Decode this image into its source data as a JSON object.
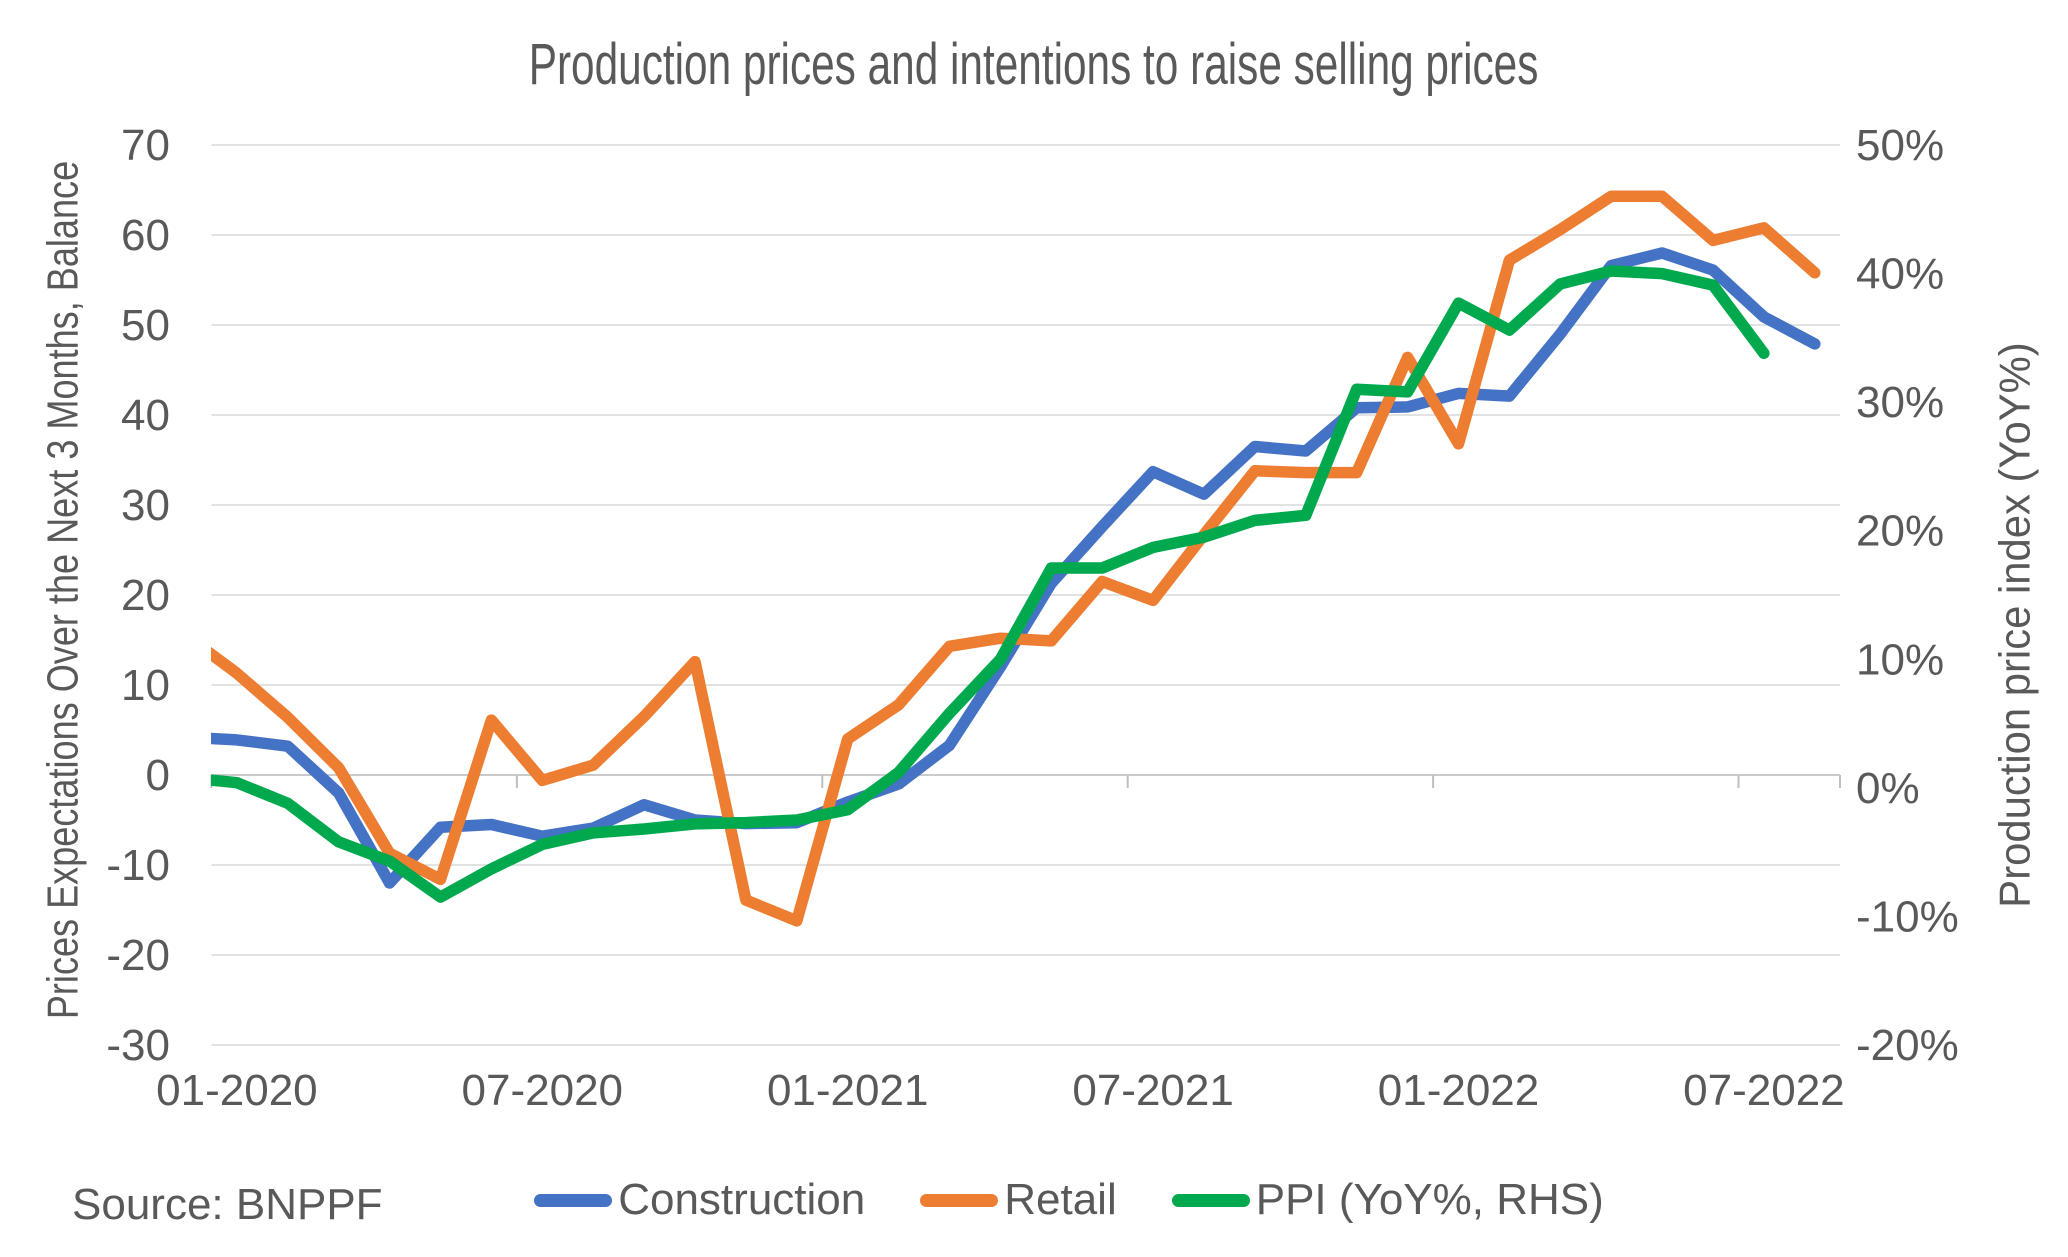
{
  "chart_data": {
    "type": "line",
    "title": "Production prices and intentions to raise selling prices",
    "source": "Source: BNPPF",
    "grid": true,
    "legend_position": "bottom",
    "x": [
      "12-2019",
      "01-2020",
      "02-2020",
      "03-2020",
      "04-2020",
      "05-2020",
      "06-2020",
      "07-2020",
      "08-2020",
      "09-2020",
      "10-2020",
      "11-2020",
      "12-2020",
      "01-2021",
      "02-2021",
      "03-2021",
      "04-2021",
      "05-2021",
      "06-2021",
      "07-2021",
      "08-2021",
      "09-2021",
      "10-2021",
      "11-2021",
      "12-2021",
      "01-2022",
      "02-2022",
      "03-2022",
      "04-2022",
      "05-2022",
      "06-2022",
      "07-2022",
      "08-2022"
    ],
    "x_axis_tick_labels": [
      "01-2020",
      "07-2020",
      "01-2021",
      "07-2021",
      "01-2022",
      "07-2022"
    ],
    "left_axis": {
      "label": "Prices Expectations Over the Next 3 Months, Balance",
      "min": -30,
      "max": 70,
      "ticks": [
        70,
        60,
        50,
        40,
        30,
        20,
        10,
        0,
        -10,
        -20,
        -30
      ],
      "tick_suffix": ""
    },
    "right_axis": {
      "label": "Production price index (YoY%)",
      "min": -20,
      "max": 50,
      "ticks": [
        50,
        40,
        30,
        20,
        10,
        0,
        -10,
        -20
      ],
      "tick_suffix": "%"
    },
    "series": [
      {
        "name": "Construction",
        "axis": "left",
        "color": "#4472C4",
        "values": [
          4.2,
          3.9,
          3.2,
          -2.0,
          -12.0,
          -5.8,
          -5.5,
          -6.8,
          -5.9,
          -3.3,
          -5.0,
          -5.4,
          -5.3,
          -3.0,
          -1.0,
          3.3,
          12.0,
          21.3,
          27.6,
          33.7,
          31.2,
          36.5,
          36.0,
          40.8,
          40.9,
          42.4,
          42.1,
          49.0,
          56.6,
          58.0,
          56.1,
          50.9,
          47.9
        ]
      },
      {
        "name": "Retail",
        "axis": "left",
        "color": "#ED7D31",
        "values": [
          15.5,
          11.3,
          6.4,
          0.8,
          -8.7,
          -11.6,
          6.1,
          -0.6,
          1.1,
          6.5,
          12.6,
          -13.9,
          -16.2,
          4.0,
          7.8,
          14.3,
          15.2,
          14.9,
          21.5,
          19.4,
          26.7,
          33.8,
          33.6,
          33.6,
          46.4,
          36.8,
          57.2,
          60.6,
          64.3,
          64.3,
          59.4,
          60.8,
          55.8
        ]
      },
      {
        "name": "PPI (YoY%, RHS)",
        "axis": "right",
        "color": "#00A84E",
        "values": [
          0.8,
          0.4,
          -1.2,
          -4.2,
          -5.7,
          -8.5,
          -6.3,
          -4.4,
          -3.5,
          -3.2,
          -2.8,
          -2.7,
          -2.5,
          -1.7,
          1.2,
          5.8,
          10.0,
          17.1,
          17.1,
          18.7,
          19.5,
          20.8,
          21.2,
          31.0,
          30.8,
          37.7,
          35.6,
          39.2,
          40.2,
          40.0,
          39.1,
          33.8,
          null
        ]
      }
    ],
    "style": {
      "grid_color": "#D9D9D9",
      "axis_color": "#BFBFBF",
      "text_color": "#595959",
      "line_width": 11.5
    }
  }
}
